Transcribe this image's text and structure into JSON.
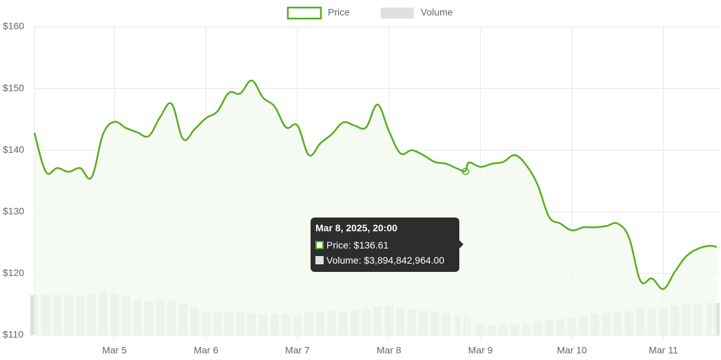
{
  "chart_data": {
    "type": "line",
    "x": [
      "2025-03-04 03:00",
      "2025-03-04 06:00",
      "2025-03-04 09:00",
      "2025-03-04 12:00",
      "2025-03-04 15:00",
      "2025-03-04 18:00",
      "2025-03-04 21:00",
      "2025-03-05 00:00",
      "2025-03-05 03:00",
      "2025-03-05 06:00",
      "2025-03-05 09:00",
      "2025-03-05 12:00",
      "2025-03-05 15:00",
      "2025-03-05 18:00",
      "2025-03-05 21:00",
      "2025-03-06 00:00",
      "2025-03-06 03:00",
      "2025-03-06 06:00",
      "2025-03-06 09:00",
      "2025-03-06 12:00",
      "2025-03-06 15:00",
      "2025-03-06 18:00",
      "2025-03-06 21:00",
      "2025-03-07 00:00",
      "2025-03-07 03:00",
      "2025-03-07 06:00",
      "2025-03-07 09:00",
      "2025-03-07 12:00",
      "2025-03-07 15:00",
      "2025-03-07 18:00",
      "2025-03-07 21:00",
      "2025-03-08 00:00",
      "2025-03-08 03:00",
      "2025-03-08 06:00",
      "2025-03-08 09:00",
      "2025-03-08 12:00",
      "2025-03-08 15:00",
      "2025-03-08 18:00",
      "2025-03-08 20:00",
      "2025-03-08 21:00",
      "2025-03-09 00:00",
      "2025-03-09 03:00",
      "2025-03-09 06:00",
      "2025-03-09 09:00",
      "2025-03-09 12:00",
      "2025-03-09 15:00",
      "2025-03-09 18:00",
      "2025-03-09 21:00",
      "2025-03-10 00:00",
      "2025-03-10 03:00",
      "2025-03-10 06:00",
      "2025-03-10 09:00",
      "2025-03-10 12:00",
      "2025-03-10 15:00",
      "2025-03-10 18:00",
      "2025-03-10 21:00",
      "2025-03-11 00:00",
      "2025-03-11 03:00",
      "2025-03-11 06:00",
      "2025-03-11 09:00",
      "2025-03-11 12:00",
      "2025-03-11 14:00"
    ],
    "series": [
      {
        "name": "Price",
        "color": "#56ad1e",
        "fill": "#f2f8ed",
        "values": [
          142.8,
          136.5,
          137.1,
          136.5,
          137.1,
          135.6,
          142.6,
          144.6,
          143.6,
          142.9,
          142.3,
          145.4,
          147.5,
          141.8,
          143.4,
          145.2,
          146.3,
          149.3,
          149.2,
          151.3,
          148.5,
          147.1,
          143.7,
          144.0,
          139.2,
          141.1,
          142.6,
          144.5,
          144.0,
          143.7,
          147.4,
          143.1,
          139.5,
          140.0,
          139.2,
          138.1,
          137.8,
          137.0,
          136.61,
          138.0,
          137.3,
          137.8,
          138.1,
          139.2,
          137.6,
          134.4,
          129.2,
          128.1,
          127.0,
          127.5,
          127.5,
          127.7,
          128.1,
          125.8,
          118.8,
          119.2,
          117.5,
          120.3,
          122.8,
          124.0,
          124.5,
          124.3
        ]
      },
      {
        "name": "Volume",
        "color": "#e0e0e0",
        "axis": "y2",
        "values": [
          8300000000,
          8400000000,
          8400000000,
          8300000000,
          8300000000,
          8600000000,
          8900000000,
          8600000000,
          8100000000,
          7400000000,
          7100000000,
          7100000000,
          7300000000,
          6600000000,
          5700000000,
          4700000000,
          4700000000,
          4700000000,
          4700000000,
          4600000000,
          4400000000,
          4300000000,
          4300000000,
          4300000000,
          4700000000,
          5000000000,
          5000000000,
          5000000000,
          5100000000,
          5400000000,
          6000000000,
          6100000000,
          5700000000,
          5400000000,
          5100000000,
          4900000000,
          4600000000,
          4300000000,
          3894842964,
          3600000000,
          2300000000,
          2100000000,
          2100000000,
          2100000000,
          2400000000,
          2900000000,
          3100000000,
          3400000000,
          3600000000,
          4000000000,
          4400000000,
          4600000000,
          4900000000,
          5000000000,
          5300000000,
          5600000000,
          5700000000,
          6100000000,
          6400000000,
          6600000000,
          6700000000,
          6700000000
        ]
      }
    ],
    "xlim": [
      "2025-03-04 03:00",
      "2025-03-11 14:45"
    ],
    "xticks": [
      {
        "value": "2025-03-05 00:00",
        "label": "Mar 5"
      },
      {
        "value": "2025-03-06 00:00",
        "label": "Mar 6"
      },
      {
        "value": "2025-03-07 00:00",
        "label": "Mar 7"
      },
      {
        "value": "2025-03-08 00:00",
        "label": "Mar 8"
      },
      {
        "value": "2025-03-09 00:00",
        "label": "Mar 9"
      },
      {
        "value": "2025-03-10 00:00",
        "label": "Mar 10"
      },
      {
        "value": "2025-03-11 00:00",
        "label": "Mar 11"
      }
    ],
    "ylim": [
      110,
      160
    ],
    "yticks": [
      {
        "value": 110,
        "label": "$110"
      },
      {
        "value": 120,
        "label": "$120"
      },
      {
        "value": 130,
        "label": "$130"
      },
      {
        "value": 140,
        "label": "$140"
      },
      {
        "value": 150,
        "label": "$150"
      },
      {
        "value": 160,
        "label": "$160"
      }
    ],
    "y2lim": [
      0,
      64000000000
    ],
    "grid": true,
    "legend": "top",
    "tooltip": {
      "title": "Mar 8, 2025, 20:00",
      "lines": [
        "Price: $136.61",
        "Volume: $3,894,842,964.00"
      ]
    }
  }
}
